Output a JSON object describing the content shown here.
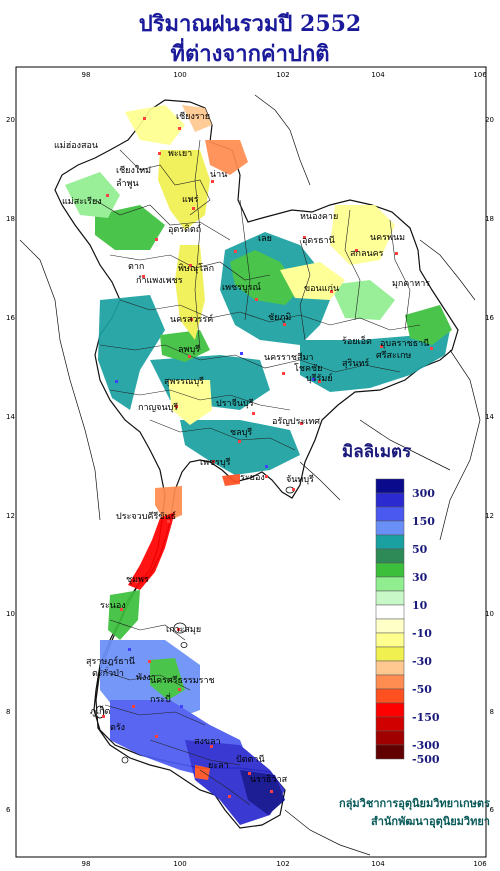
{
  "title_line1": "ปริมาณฝนรวมปี 2552",
  "title_line2": "ที่ต่างจากค่าปกติ",
  "legend": {
    "title": "มิลลิเมตร",
    "classes": [
      {
        "label": "300",
        "color": "#0a0a8c"
      },
      {
        "label": "",
        "color": "#2a2ad0"
      },
      {
        "label": "150",
        "color": "#4a5af0"
      },
      {
        "label": "",
        "color": "#6a90f8"
      },
      {
        "label": "50",
        "color": "#1aa0a0"
      },
      {
        "label": "",
        "color": "#2e8b57"
      },
      {
        "label": "30",
        "color": "#3cc03c"
      },
      {
        "label": "",
        "color": "#90ee90"
      },
      {
        "label": "10",
        "color": "#c8f8c8"
      },
      {
        "label": "",
        "color": "#ffffff"
      },
      {
        "label": "-10",
        "color": "#ffffc8"
      },
      {
        "label": "",
        "color": "#ffff90"
      },
      {
        "label": "-30",
        "color": "#f0f050"
      },
      {
        "label": "",
        "color": "#ffc890"
      },
      {
        "label": "-50",
        "color": "#ff8c50"
      },
      {
        "label": "",
        "color": "#ff5020"
      },
      {
        "label": "-150",
        "color": "#ff0000"
      },
      {
        "label": "",
        "color": "#d00000"
      },
      {
        "label": "-300",
        "color": "#a00000"
      },
      {
        "label": "-500",
        "color": "#600000"
      }
    ]
  },
  "axes": {
    "lon_ticks": [
      "98",
      "100",
      "102",
      "104",
      "106"
    ],
    "lat_ticks": [
      "20",
      "18",
      "16",
      "14",
      "12",
      "10",
      "8",
      "6"
    ]
  },
  "places": [
    {
      "name": "เชียงราย"
    },
    {
      "name": "แม่ฮ่องสอน"
    },
    {
      "name": "พะเยา"
    },
    {
      "name": "เชียงใหม่"
    },
    {
      "name": "ลำพูน"
    },
    {
      "name": "น่าน"
    },
    {
      "name": "แพร่"
    },
    {
      "name": "แม่สะเรียง"
    },
    {
      "name": "อุตรดิตถ์"
    },
    {
      "name": "หนองคาย"
    },
    {
      "name": "อุดรธานี"
    },
    {
      "name": "นครพนม"
    },
    {
      "name": "เลย"
    },
    {
      "name": "สกลนคร"
    },
    {
      "name": "ตาก"
    },
    {
      "name": "พิษณุโลก"
    },
    {
      "name": "มุกดาหาร"
    },
    {
      "name": "กำแพงเพชร"
    },
    {
      "name": "เพชรบูรณ์"
    },
    {
      "name": "ขอนแก่น"
    },
    {
      "name": "นครสวรรค์"
    },
    {
      "name": "ชัยภูมิ"
    },
    {
      "name": "ร้อยเอ็ด"
    },
    {
      "name": "อุบลราชธานี"
    },
    {
      "name": "ลพบุรี"
    },
    {
      "name": "ศรีสะเกษ"
    },
    {
      "name": "นครราชสีมา"
    },
    {
      "name": "สุรินทร์"
    },
    {
      "name": "สุพรรณบุรี"
    },
    {
      "name": "โชคชัย"
    },
    {
      "name": "บุรีรัมย์"
    },
    {
      "name": "กาญจนบุรี"
    },
    {
      "name": "ปราจีนบุรี"
    },
    {
      "name": "อรัญประเทศ"
    },
    {
      "name": "ชลบุรี"
    },
    {
      "name": "เพชรบุรี"
    },
    {
      "name": "ระยอง"
    },
    {
      "name": "จันทบุรี"
    },
    {
      "name": "ประจวบคีรีขันธ์"
    },
    {
      "name": "ชุมพร"
    },
    {
      "name": "ระนอง"
    },
    {
      "name": "เกาะสมุย"
    },
    {
      "name": "สุราษฎร์ธานี"
    },
    {
      "name": "ตะกั่วป่า"
    },
    {
      "name": "พังงา"
    },
    {
      "name": "นครศรีธรรมราช"
    },
    {
      "name": "ภูเก็ต"
    },
    {
      "name": "กระบี่"
    },
    {
      "name": "ตรัง"
    },
    {
      "name": "สงขลา"
    },
    {
      "name": "ปัตตานี"
    },
    {
      "name": "นราธิวาส"
    },
    {
      "name": "ยะลา"
    }
  ],
  "credit_line1": "กลุ่มวิชาการอุตุนิยมวิทยาเกษตร",
  "credit_line2": "สำนักพัฒนาอุตุนิยมวิทยา"
}
